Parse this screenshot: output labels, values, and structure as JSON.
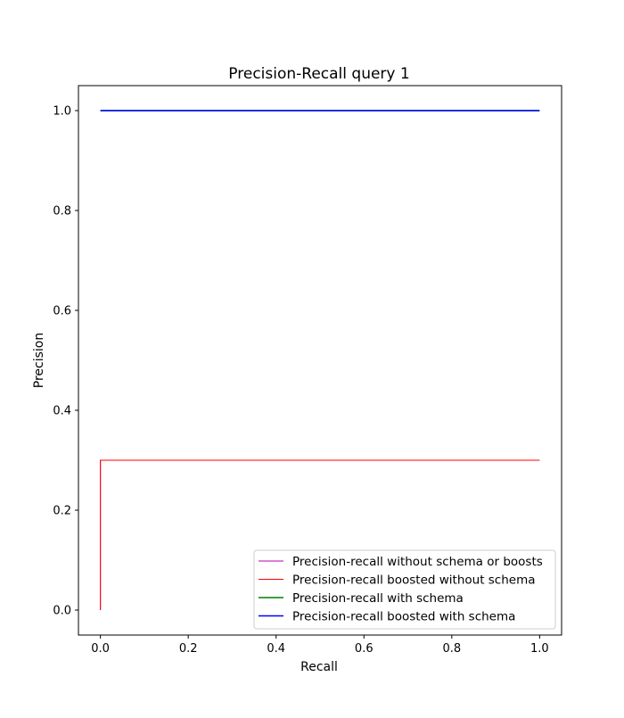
{
  "chart_data": {
    "type": "line",
    "title": "Precision-Recall query 1",
    "xlabel": "Recall",
    "ylabel": "Precision",
    "xlim": [
      -0.05,
      1.05
    ],
    "ylim": [
      -0.05,
      1.05
    ],
    "xticks": [
      0.0,
      0.2,
      0.4,
      0.6,
      0.8,
      1.0
    ],
    "yticks": [
      0.0,
      0.2,
      0.4,
      0.6,
      0.8,
      1.0
    ],
    "xtick_labels": [
      "0.0",
      "0.2",
      "0.4",
      "0.6",
      "0.8",
      "1.0"
    ],
    "ytick_labels": [
      "0.0",
      "0.2",
      "0.4",
      "0.6",
      "0.8",
      "1.0"
    ],
    "grid": false,
    "legend_position": "lower-right",
    "series": [
      {
        "name": "Precision-recall without schema or boosts",
        "color": "#b000b0",
        "x": [
          0.0,
          0.0,
          1.0
        ],
        "y": [
          0.0,
          0.3,
          0.3
        ]
      },
      {
        "name": "Precision-recall boosted without schema",
        "color": "#ff0000",
        "x": [
          0.0,
          0.0,
          1.0
        ],
        "y": [
          0.0,
          0.3,
          0.3
        ]
      },
      {
        "name": "Precision-recall with schema",
        "color": "#008000",
        "x": [
          0.0,
          1.0
        ],
        "y": [
          1.0,
          1.0
        ]
      },
      {
        "name": "Precision-recall boosted with schema",
        "color": "#0000ff",
        "x": [
          0.0,
          1.0
        ],
        "y": [
          1.0,
          1.0
        ]
      }
    ]
  }
}
